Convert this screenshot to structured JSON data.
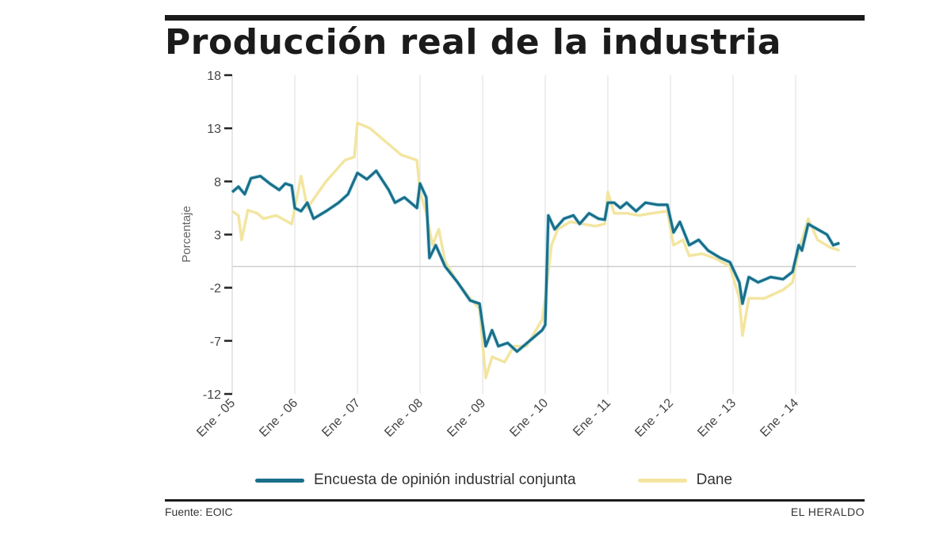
{
  "title": "Producción real de la industria",
  "source": "Fuente: EOIC",
  "brand": "EL HERALDO",
  "colors": {
    "eoic": "#1a6e89",
    "dane": "#f3e5a0"
  },
  "chart_data": {
    "type": "line",
    "title": "Producción real de la industria",
    "xlabel": "",
    "ylabel": "Porcentaje",
    "ylim": [
      -12,
      18
    ],
    "xlim": [
      2005.0,
      2014.95
    ],
    "yticks": [
      18,
      13,
      8,
      3,
      -2,
      -7,
      -12
    ],
    "ytick_labels": [
      "18",
      "13",
      "8",
      "3",
      "-2",
      "-7",
      "-12"
    ],
    "xticks": [
      2005,
      2006,
      2007,
      2008,
      2009,
      2010,
      2011,
      2012,
      2013,
      2014
    ],
    "xtick_labels": [
      "Ene - 05",
      "Ene - 06",
      "Ene - 07",
      "Ene - 08",
      "Ene - 09",
      "Ene - 10",
      "Ene - 11",
      "Ene - 12",
      "Ene - 13",
      "Ene - 14"
    ],
    "grid": "vertical",
    "legend_position": "bottom",
    "series": [
      {
        "name": "Encuesta de opinión industrial conjunta",
        "color": "#1a6e89",
        "points": [
          [
            2005.0,
            7.0
          ],
          [
            2005.1,
            7.5
          ],
          [
            2005.2,
            6.8
          ],
          [
            2005.3,
            8.3
          ],
          [
            2005.45,
            8.5
          ],
          [
            2005.6,
            7.8
          ],
          [
            2005.75,
            7.2
          ],
          [
            2005.85,
            7.8
          ],
          [
            2005.95,
            7.6
          ],
          [
            2006.0,
            5.5
          ],
          [
            2006.1,
            5.2
          ],
          [
            2006.2,
            6.0
          ],
          [
            2006.3,
            4.5
          ],
          [
            2006.5,
            5.2
          ],
          [
            2006.7,
            6.0
          ],
          [
            2006.85,
            6.8
          ],
          [
            2007.0,
            8.8
          ],
          [
            2007.15,
            8.2
          ],
          [
            2007.3,
            9.0
          ],
          [
            2007.5,
            7.2
          ],
          [
            2007.6,
            6.0
          ],
          [
            2007.75,
            6.5
          ],
          [
            2007.95,
            5.5
          ],
          [
            2008.0,
            7.8
          ],
          [
            2008.1,
            6.5
          ],
          [
            2008.15,
            0.8
          ],
          [
            2008.25,
            2.0
          ],
          [
            2008.4,
            0.0
          ],
          [
            2008.6,
            -1.5
          ],
          [
            2008.8,
            -3.2
          ],
          [
            2008.95,
            -3.5
          ],
          [
            2009.05,
            -7.5
          ],
          [
            2009.15,
            -6.0
          ],
          [
            2009.25,
            -7.5
          ],
          [
            2009.4,
            -7.2
          ],
          [
            2009.55,
            -8.0
          ],
          [
            2009.75,
            -7.0
          ],
          [
            2009.95,
            -6.0
          ],
          [
            2010.0,
            -5.5
          ],
          [
            2010.05,
            4.8
          ],
          [
            2010.15,
            3.5
          ],
          [
            2010.3,
            4.5
          ],
          [
            2010.45,
            4.8
          ],
          [
            2010.55,
            4.0
          ],
          [
            2010.7,
            5.0
          ],
          [
            2010.85,
            4.5
          ],
          [
            2010.95,
            4.4
          ],
          [
            2011.0,
            6.0
          ],
          [
            2011.1,
            6.0
          ],
          [
            2011.2,
            5.5
          ],
          [
            2011.3,
            6.0
          ],
          [
            2011.45,
            5.2
          ],
          [
            2011.6,
            6.0
          ],
          [
            2011.8,
            5.8
          ],
          [
            2011.95,
            5.8
          ],
          [
            2012.05,
            3.2
          ],
          [
            2012.15,
            4.2
          ],
          [
            2012.3,
            2.0
          ],
          [
            2012.45,
            2.5
          ],
          [
            2012.6,
            1.5
          ],
          [
            2012.8,
            0.8
          ],
          [
            2012.95,
            0.4
          ],
          [
            2013.1,
            -1.5
          ],
          [
            2013.15,
            -3.5
          ],
          [
            2013.25,
            -1.0
          ],
          [
            2013.4,
            -1.5
          ],
          [
            2013.6,
            -1.0
          ],
          [
            2013.8,
            -1.2
          ],
          [
            2013.95,
            -0.5
          ],
          [
            2014.05,
            2.0
          ],
          [
            2014.1,
            1.5
          ],
          [
            2014.2,
            4.0
          ],
          [
            2014.35,
            3.5
          ],
          [
            2014.5,
            3.0
          ],
          [
            2014.6,
            2.0
          ],
          [
            2014.7,
            2.2
          ]
        ]
      },
      {
        "name": "Dane",
        "color": "#f3e5a0",
        "points": [
          [
            2005.0,
            5.2
          ],
          [
            2005.1,
            4.8
          ],
          [
            2005.15,
            2.5
          ],
          [
            2005.25,
            5.3
          ],
          [
            2005.4,
            5.0
          ],
          [
            2005.5,
            4.5
          ],
          [
            2005.7,
            4.8
          ],
          [
            2005.95,
            4.0
          ],
          [
            2006.0,
            5.5
          ],
          [
            2006.1,
            8.5
          ],
          [
            2006.2,
            5.5
          ],
          [
            2006.5,
            8.0
          ],
          [
            2006.8,
            10.0
          ],
          [
            2006.95,
            10.3
          ],
          [
            2007.0,
            13.5
          ],
          [
            2007.2,
            13.0
          ],
          [
            2007.5,
            11.5
          ],
          [
            2007.7,
            10.5
          ],
          [
            2007.95,
            10.0
          ],
          [
            2008.0,
            7.0
          ],
          [
            2008.1,
            5.0
          ],
          [
            2008.2,
            2.0
          ],
          [
            2008.3,
            3.5
          ],
          [
            2008.4,
            0.5
          ],
          [
            2008.6,
            -1.5
          ],
          [
            2008.8,
            -3.0
          ],
          [
            2008.95,
            -4.0
          ],
          [
            2009.05,
            -10.5
          ],
          [
            2009.15,
            -8.5
          ],
          [
            2009.35,
            -9.0
          ],
          [
            2009.5,
            -7.5
          ],
          [
            2009.7,
            -7.5
          ],
          [
            2009.95,
            -5.0
          ],
          [
            2010.0,
            -3.0
          ],
          [
            2010.1,
            2.0
          ],
          [
            2010.2,
            3.5
          ],
          [
            2010.4,
            4.2
          ],
          [
            2010.6,
            4.0
          ],
          [
            2010.8,
            3.8
          ],
          [
            2010.95,
            4.0
          ],
          [
            2011.0,
            7.0
          ],
          [
            2011.1,
            5.0
          ],
          [
            2011.3,
            5.0
          ],
          [
            2011.5,
            4.8
          ],
          [
            2011.7,
            5.0
          ],
          [
            2011.95,
            5.2
          ],
          [
            2012.05,
            2.0
          ],
          [
            2012.2,
            2.5
          ],
          [
            2012.3,
            1.0
          ],
          [
            2012.5,
            1.2
          ],
          [
            2012.7,
            0.8
          ],
          [
            2012.95,
            0.0
          ],
          [
            2013.1,
            -3.0
          ],
          [
            2013.15,
            -6.5
          ],
          [
            2013.25,
            -3.0
          ],
          [
            2013.5,
            -3.0
          ],
          [
            2013.8,
            -2.2
          ],
          [
            2013.95,
            -1.5
          ],
          [
            2014.05,
            1.5
          ],
          [
            2014.2,
            4.5
          ],
          [
            2014.35,
            2.5
          ],
          [
            2014.55,
            1.8
          ],
          [
            2014.7,
            1.5
          ]
        ]
      }
    ]
  }
}
